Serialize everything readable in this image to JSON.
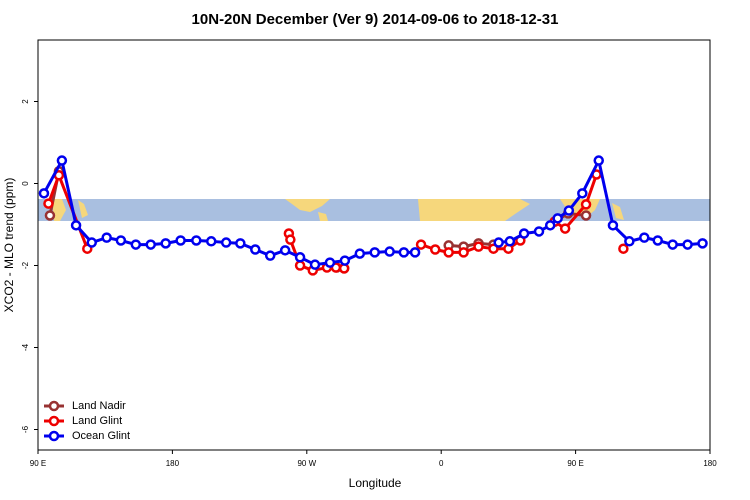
{
  "chart_data": {
    "type": "line",
    "title": "10N-20N December (Ver 9)   2014-09-06 to 2018-12-31",
    "x_label": "Longitude",
    "y_label": "XCO2 - MLO trend (ppm)",
    "xlim": [
      90,
      540
    ],
    "ylim": [
      -6.5,
      3.5
    ],
    "xticks": [
      {
        "value": 90,
        "label": "90 E"
      },
      {
        "value": 180,
        "label": "180"
      },
      {
        "value": 270,
        "label": "90 W"
      },
      {
        "value": 360,
        "label": "0"
      },
      {
        "value": 450,
        "label": "90 E"
      },
      {
        "value": 540,
        "label": "180"
      }
    ],
    "yticks": [
      2,
      0,
      -2,
      -4,
      -6
    ],
    "legend": "bottom-left",
    "series": [
      {
        "name": "Land Nadir",
        "color": "#983232",
        "x": [
          98,
          104,
          null,
          290,
          295,
          null,
          365,
          375,
          385,
          395,
          null,
          436,
          445,
          457
        ],
        "values": [
          -0.78,
          0.3,
          null,
          -2.05,
          -2.07,
          null,
          -1.51,
          -1.54,
          -1.46,
          -1.49,
          null,
          -0.93,
          -0.73,
          -0.78
        ]
      },
      {
        "name": "Land Glint",
        "color": "#ee0000",
        "x": [
          97,
          104,
          123,
          null,
          258,
          259,
          265.5,
          274,
          283.5,
          289.5,
          295,
          null,
          346.5,
          356,
          365,
          375,
          385,
          395,
          405,
          413,
          null,
          436,
          443,
          457,
          464,
          null,
          482
        ],
        "values": [
          -0.49,
          0.2,
          -1.59,
          null,
          -1.22,
          -1.37,
          -2.0,
          -2.12,
          -2.05,
          -2.05,
          -2.07,
          null,
          -1.49,
          -1.61,
          -1.68,
          -1.68,
          -1.54,
          -1.59,
          -1.59,
          -1.39,
          null,
          -0.93,
          -1.1,
          -0.51,
          0.22,
          null,
          -1.59
        ]
      },
      {
        "name": "Ocean Glint",
        "color": "#0000ee",
        "x": [
          94,
          106,
          115.5,
          126,
          136,
          145.5,
          155.5,
          165.5,
          175.5,
          185.5,
          196,
          206,
          216,
          225.5,
          235.5,
          245.5,
          255.5,
          265.5,
          275.5,
          285.5,
          295.5,
          305.5,
          315.5,
          325.5,
          335,
          342.5,
          null,
          398.5,
          406,
          415.5,
          425.5,
          433,
          438,
          445.5,
          454.5,
          465.5,
          475,
          486,
          496,
          505,
          515,
          525,
          535
        ],
        "values": [
          -0.24,
          0.56,
          -1.02,
          -1.44,
          -1.32,
          -1.39,
          -1.49,
          -1.49,
          -1.46,
          -1.39,
          -1.39,
          -1.41,
          -1.44,
          -1.46,
          -1.61,
          -1.76,
          -1.63,
          -1.8,
          -1.98,
          -1.93,
          -1.88,
          -1.71,
          -1.68,
          -1.66,
          -1.68,
          -1.68,
          null,
          -1.44,
          -1.41,
          -1.22,
          -1.17,
          -1.02,
          -0.85,
          -0.66,
          -0.24,
          0.56,
          -1.02,
          -1.41,
          -1.32,
          -1.39,
          -1.49,
          -1.49,
          -1.46
        ]
      }
    ]
  }
}
